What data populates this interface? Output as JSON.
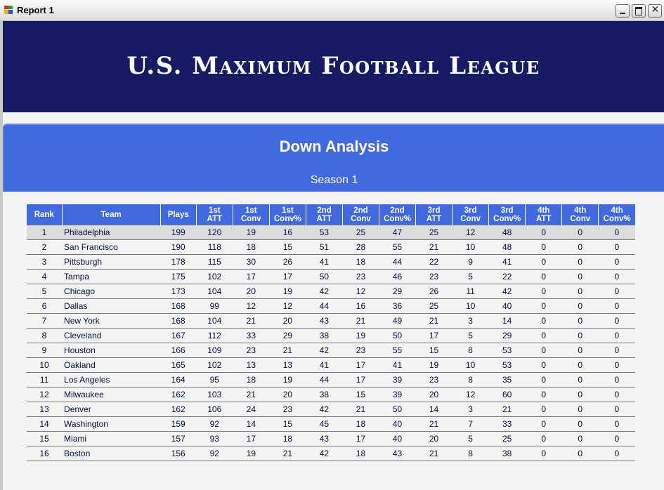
{
  "window": {
    "title": "Report 1",
    "icon": "app-icon",
    "controls": [
      "minimize-icon",
      "maximize-icon",
      "close-icon"
    ]
  },
  "header": {
    "league_name": "U.S. Maximum Football League"
  },
  "section": {
    "title": "Down Analysis",
    "season": "Season 1"
  },
  "colors": {
    "header_band": "#161b64",
    "section_band": "#4169e0",
    "table_header": "#4169e0",
    "row_highlight": "#dcdcdc"
  },
  "table": {
    "columns": [
      [
        "Rank"
      ],
      [
        "Team"
      ],
      [
        "Plays"
      ],
      [
        "1st",
        "ATT"
      ],
      [
        "1st",
        "Conv"
      ],
      [
        "1st",
        "Conv%"
      ],
      [
        "2nd",
        "ATT"
      ],
      [
        "2nd",
        "Conv"
      ],
      [
        "2nd",
        "Conv%"
      ],
      [
        "3rd",
        "ATT"
      ],
      [
        "3rd",
        "Conv"
      ],
      [
        "3rd",
        "Conv%"
      ],
      [
        "4th",
        "ATT"
      ],
      [
        "4th",
        "Conv"
      ],
      [
        "4th",
        "Conv%"
      ]
    ],
    "rows": [
      [
        "1",
        "Philadelphia",
        "199",
        "120",
        "19",
        "16",
        "53",
        "25",
        "47",
        "25",
        "12",
        "48",
        "0",
        "0",
        "0"
      ],
      [
        "2",
        "San Francisco",
        "190",
        "118",
        "18",
        "15",
        "51",
        "28",
        "55",
        "21",
        "10",
        "48",
        "0",
        "0",
        "0"
      ],
      [
        "3",
        "Pittsburgh",
        "178",
        "115",
        "30",
        "26",
        "41",
        "18",
        "44",
        "22",
        "9",
        "41",
        "0",
        "0",
        "0"
      ],
      [
        "4",
        "Tampa",
        "175",
        "102",
        "17",
        "17",
        "50",
        "23",
        "46",
        "23",
        "5",
        "22",
        "0",
        "0",
        "0"
      ],
      [
        "5",
        "Chicago",
        "173",
        "104",
        "20",
        "19",
        "42",
        "12",
        "29",
        "26",
        "11",
        "42",
        "0",
        "0",
        "0"
      ],
      [
        "6",
        "Dallas",
        "168",
        "99",
        "12",
        "12",
        "44",
        "16",
        "36",
        "25",
        "10",
        "40",
        "0",
        "0",
        "0"
      ],
      [
        "7",
        "New York",
        "168",
        "104",
        "21",
        "20",
        "43",
        "21",
        "49",
        "21",
        "3",
        "14",
        "0",
        "0",
        "0"
      ],
      [
        "8",
        "Cleveland",
        "167",
        "112",
        "33",
        "29",
        "38",
        "19",
        "50",
        "17",
        "5",
        "29",
        "0",
        "0",
        "0"
      ],
      [
        "9",
        "Houston",
        "166",
        "109",
        "23",
        "21",
        "42",
        "23",
        "55",
        "15",
        "8",
        "53",
        "0",
        "0",
        "0"
      ],
      [
        "10",
        "Oakland",
        "165",
        "102",
        "13",
        "13",
        "41",
        "17",
        "41",
        "19",
        "10",
        "53",
        "0",
        "0",
        "0"
      ],
      [
        "11",
        "Los Angeles",
        "164",
        "95",
        "18",
        "19",
        "44",
        "17",
        "39",
        "23",
        "8",
        "35",
        "0",
        "0",
        "0"
      ],
      [
        "12",
        "Milwaukee",
        "162",
        "103",
        "21",
        "20",
        "38",
        "15",
        "39",
        "20",
        "12",
        "60",
        "0",
        "0",
        "0"
      ],
      [
        "13",
        "Denver",
        "162",
        "106",
        "24",
        "23",
        "42",
        "21",
        "50",
        "14",
        "3",
        "21",
        "0",
        "0",
        "0"
      ],
      [
        "14",
        "Washington",
        "159",
        "92",
        "14",
        "15",
        "45",
        "18",
        "40",
        "21",
        "7",
        "33",
        "0",
        "0",
        "0"
      ],
      [
        "15",
        "Miami",
        "157",
        "93",
        "17",
        "18",
        "43",
        "17",
        "40",
        "20",
        "5",
        "25",
        "0",
        "0",
        "0"
      ],
      [
        "16",
        "Boston",
        "156",
        "92",
        "19",
        "21",
        "42",
        "18",
        "43",
        "21",
        "8",
        "38",
        "0",
        "0",
        "0"
      ]
    ],
    "highlighted_row": 0
  }
}
